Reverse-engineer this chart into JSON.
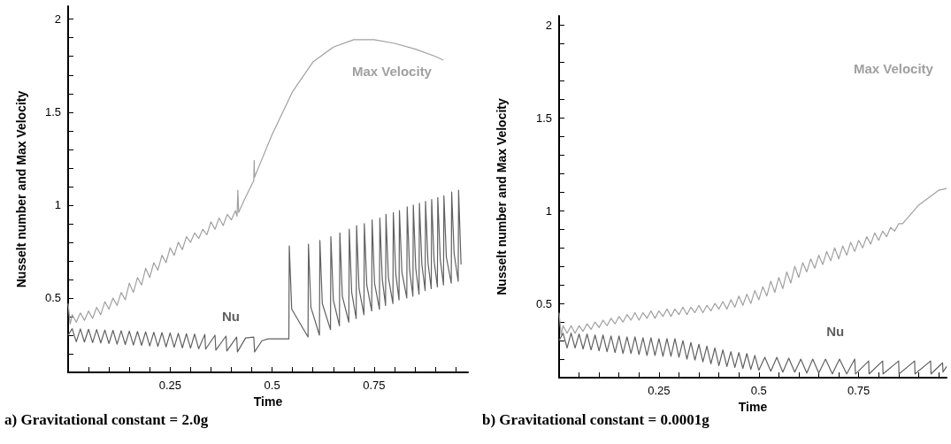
{
  "chart_data": [
    {
      "type": "line",
      "title": "a) Gravitational constant = 2.0g",
      "xlabel": "Time",
      "ylabel": "Nusselt number and Max Velocity",
      "xlim": [
        0,
        0.98
      ],
      "ylim": [
        0.1,
        2.07
      ],
      "xticks": [
        {
          "value": 0.05,
          "label": null
        },
        {
          "value": 0.1,
          "label": null
        },
        {
          "value": 0.15,
          "label": null
        },
        {
          "value": 0.2,
          "label": null
        },
        0.25,
        {
          "value": 0.3,
          "label": null
        },
        {
          "value": 0.35,
          "label": null
        },
        {
          "value": 0.4,
          "label": null
        },
        {
          "value": 0.45,
          "label": null
        },
        0.5,
        {
          "value": 0.55,
          "label": null
        },
        {
          "value": 0.6,
          "label": null
        },
        {
          "value": 0.65,
          "label": null
        },
        {
          "value": 0.7,
          "label": null
        },
        0.75,
        {
          "value": 0.8,
          "label": null
        },
        {
          "value": 0.85,
          "label": null
        },
        {
          "value": 0.9,
          "label": null
        },
        {
          "value": 0.95,
          "label": null
        }
      ],
      "yticks": [
        {
          "value": 0.2,
          "label": null
        },
        {
          "value": 0.3,
          "label": null
        },
        {
          "value": 0.4,
          "label": null
        },
        0.5,
        {
          "value": 0.6,
          "label": null
        },
        {
          "value": 0.7,
          "label": null
        },
        {
          "value": 0.8,
          "label": null
        },
        {
          "value": 0.9,
          "label": null
        },
        1,
        {
          "value": 1.1,
          "label": null
        },
        {
          "value": 1.2,
          "label": null
        },
        {
          "value": 1.3,
          "label": null
        },
        {
          "value": 1.4,
          "label": null
        },
        1.5,
        {
          "value": 1.6,
          "label": null
        },
        {
          "value": 1.7,
          "label": null
        },
        {
          "value": 1.8,
          "label": null
        },
        {
          "value": 1.9,
          "label": null
        },
        2
      ],
      "series": [
        {
          "name": "Max Velocity",
          "color": "#a0a0a0",
          "x": [
            0,
            0.005,
            0.01,
            0.02,
            0.03,
            0.04,
            0.05,
            0.06,
            0.07,
            0.08,
            0.09,
            0.1,
            0.11,
            0.12,
            0.13,
            0.14,
            0.15,
            0.16,
            0.17,
            0.18,
            0.19,
            0.2,
            0.21,
            0.22,
            0.23,
            0.24,
            0.25,
            0.26,
            0.27,
            0.28,
            0.29,
            0.3,
            0.31,
            0.32,
            0.33,
            0.34,
            0.35,
            0.36,
            0.37,
            0.38,
            0.39,
            0.4,
            0.41,
            0.414,
            0.416,
            0.418,
            0.43,
            0.45,
            0.455,
            0.456,
            0.457,
            0.47,
            0.5,
            0.55,
            0.6,
            0.65,
            0.7,
            0.75,
            0.8,
            0.85,
            0.9,
            0.92
          ],
          "values": [
            0.47,
            0.36,
            0.41,
            0.37,
            0.42,
            0.38,
            0.43,
            0.39,
            0.45,
            0.41,
            0.48,
            0.44,
            0.5,
            0.46,
            0.53,
            0.49,
            0.58,
            0.53,
            0.61,
            0.57,
            0.66,
            0.61,
            0.69,
            0.65,
            0.73,
            0.69,
            0.77,
            0.73,
            0.8,
            0.76,
            0.83,
            0.8,
            0.85,
            0.82,
            0.87,
            0.84,
            0.91,
            0.87,
            0.93,
            0.89,
            0.95,
            0.92,
            0.97,
            0.94,
            1.08,
            0.96,
            1.02,
            1.11,
            1.13,
            1.24,
            1.15,
            1.22,
            1.38,
            1.61,
            1.77,
            1.85,
            1.89,
            1.89,
            1.87,
            1.84,
            1.8,
            1.78
          ]
        },
        {
          "name": "Nu",
          "color": "#606060",
          "x": [
            0,
            0.01,
            0.02,
            0.03,
            0.04,
            0.05,
            0.06,
            0.07,
            0.08,
            0.09,
            0.1,
            0.11,
            0.12,
            0.13,
            0.14,
            0.15,
            0.16,
            0.17,
            0.18,
            0.19,
            0.2,
            0.21,
            0.22,
            0.23,
            0.24,
            0.25,
            0.26,
            0.27,
            0.28,
            0.29,
            0.3,
            0.31,
            0.32,
            0.335,
            0.337,
            0.36,
            0.362,
            0.387,
            0.389,
            0.413,
            0.415,
            0.435,
            0.455,
            0.457,
            0.475,
            0.49,
            0.541,
            0.542,
            0.548,
            0.588,
            0.589,
            0.595,
            0.616,
            0.617,
            0.623,
            0.643,
            0.644,
            0.65,
            0.665,
            0.666,
            0.672,
            0.688,
            0.689,
            0.695,
            0.706,
            0.707,
            0.713,
            0.725,
            0.726,
            0.732,
            0.744,
            0.745,
            0.751,
            0.763,
            0.764,
            0.77,
            0.778,
            0.779,
            0.785,
            0.796,
            0.797,
            0.803,
            0.811,
            0.812,
            0.818,
            0.83,
            0.831,
            0.837,
            0.845,
            0.846,
            0.852,
            0.86,
            0.861,
            0.867,
            0.875,
            0.876,
            0.882,
            0.89,
            0.891,
            0.897,
            0.905,
            0.906,
            0.912,
            0.92,
            0.921,
            0.927,
            0.939,
            0.94,
            0.946,
            0.956,
            0.957,
            0.963
          ],
          "values": [
            0.3,
            0.335,
            0.265,
            0.334,
            0.263,
            0.332,
            0.26,
            0.33,
            0.258,
            0.328,
            0.255,
            0.326,
            0.252,
            0.324,
            0.25,
            0.322,
            0.247,
            0.32,
            0.245,
            0.318,
            0.242,
            0.316,
            0.24,
            0.314,
            0.237,
            0.312,
            0.235,
            0.31,
            0.232,
            0.308,
            0.23,
            0.306,
            0.227,
            0.304,
            0.225,
            0.3,
            0.22,
            0.295,
            0.215,
            0.29,
            0.21,
            0.285,
            0.29,
            0.21,
            0.27,
            0.28,
            0.28,
            0.78,
            0.44,
            0.29,
            0.79,
            0.45,
            0.3,
            0.81,
            0.47,
            0.33,
            0.83,
            0.49,
            0.35,
            0.85,
            0.51,
            0.37,
            0.87,
            0.53,
            0.39,
            0.89,
            0.55,
            0.41,
            0.9,
            0.57,
            0.43,
            0.92,
            0.58,
            0.44,
            0.93,
            0.6,
            0.46,
            0.95,
            0.61,
            0.47,
            0.96,
            0.63,
            0.49,
            0.97,
            0.64,
            0.5,
            0.99,
            0.65,
            0.51,
            1,
            0.66,
            0.52,
            1.01,
            0.68,
            0.54,
            1.02,
            0.69,
            0.55,
            1.03,
            0.7,
            0.56,
            1.04,
            0.71,
            0.57,
            1.05,
            0.72,
            0.58,
            1.07,
            0.74,
            0.59,
            1.08,
            0.68
          ]
        }
      ]
    },
    {
      "type": "line",
      "title": "b) Gravitational constant = 0.0001g",
      "xlabel": "Time",
      "ylabel": "Nusselt number and Max Velocity",
      "xlim": [
        0,
        0.97
      ],
      "ylim": [
        0.1,
        2.05
      ],
      "xticks": [
        {
          "value": 0.05,
          "label": null
        },
        {
          "value": 0.1,
          "label": null
        },
        {
          "value": 0.15,
          "label": null
        },
        {
          "value": 0.2,
          "label": null
        },
        0.25,
        {
          "value": 0.3,
          "label": null
        },
        {
          "value": 0.35,
          "label": null
        },
        {
          "value": 0.4,
          "label": null
        },
        {
          "value": 0.45,
          "label": null
        },
        0.5,
        {
          "value": 0.55,
          "label": null
        },
        {
          "value": 0.6,
          "label": null
        },
        {
          "value": 0.65,
          "label": null
        },
        {
          "value": 0.7,
          "label": null
        },
        0.75,
        {
          "value": 0.8,
          "label": null
        },
        {
          "value": 0.85,
          "label": null
        },
        {
          "value": 0.9,
          "label": null
        },
        {
          "value": 0.95,
          "label": null
        }
      ],
      "yticks": [
        {
          "value": 0.2,
          "label": null
        },
        {
          "value": 0.3,
          "label": null
        },
        {
          "value": 0.4,
          "label": null
        },
        0.5,
        {
          "value": 0.6,
          "label": null
        },
        {
          "value": 0.7,
          "label": null
        },
        {
          "value": 0.8,
          "label": null
        },
        {
          "value": 0.9,
          "label": null
        },
        1,
        {
          "value": 1.1,
          "label": null
        },
        {
          "value": 1.2,
          "label": null
        },
        {
          "value": 1.3,
          "label": null
        },
        {
          "value": 1.4,
          "label": null
        },
        1.5,
        {
          "value": 1.6,
          "label": null
        },
        {
          "value": 1.7,
          "label": null
        },
        {
          "value": 1.8,
          "label": null
        },
        {
          "value": 1.9,
          "label": null
        },
        2
      ],
      "series": [
        {
          "name": "Max Velocity",
          "color": "#a0a0a0",
          "x": [
            0,
            0.005,
            0.01,
            0.02,
            0.03,
            0.04,
            0.05,
            0.06,
            0.07,
            0.08,
            0.09,
            0.1,
            0.11,
            0.12,
            0.13,
            0.14,
            0.15,
            0.16,
            0.17,
            0.18,
            0.19,
            0.2,
            0.21,
            0.22,
            0.23,
            0.24,
            0.25,
            0.26,
            0.27,
            0.28,
            0.29,
            0.3,
            0.31,
            0.32,
            0.33,
            0.34,
            0.35,
            0.36,
            0.37,
            0.38,
            0.39,
            0.4,
            0.41,
            0.42,
            0.43,
            0.44,
            0.45,
            0.46,
            0.47,
            0.48,
            0.49,
            0.5,
            0.51,
            0.52,
            0.53,
            0.54,
            0.55,
            0.56,
            0.57,
            0.58,
            0.59,
            0.6,
            0.61,
            0.62,
            0.63,
            0.64,
            0.65,
            0.66,
            0.67,
            0.68,
            0.69,
            0.7,
            0.71,
            0.72,
            0.73,
            0.74,
            0.75,
            0.76,
            0.77,
            0.78,
            0.79,
            0.8,
            0.81,
            0.82,
            0.83,
            0.84,
            0.85,
            0.86,
            0.9,
            0.95,
            0.97
          ],
          "values": [
            0.45,
            0.33,
            0.38,
            0.34,
            0.38,
            0.34,
            0.38,
            0.35,
            0.39,
            0.36,
            0.4,
            0.37,
            0.41,
            0.38,
            0.42,
            0.39,
            0.43,
            0.4,
            0.44,
            0.41,
            0.45,
            0.41,
            0.45,
            0.42,
            0.46,
            0.42,
            0.46,
            0.43,
            0.47,
            0.43,
            0.47,
            0.44,
            0.48,
            0.44,
            0.48,
            0.45,
            0.49,
            0.45,
            0.49,
            0.46,
            0.5,
            0.47,
            0.51,
            0.47,
            0.52,
            0.48,
            0.54,
            0.49,
            0.55,
            0.5,
            0.57,
            0.52,
            0.59,
            0.54,
            0.62,
            0.56,
            0.64,
            0.58,
            0.67,
            0.61,
            0.7,
            0.64,
            0.72,
            0.67,
            0.74,
            0.69,
            0.76,
            0.71,
            0.78,
            0.73,
            0.8,
            0.74,
            0.81,
            0.76,
            0.83,
            0.78,
            0.84,
            0.8,
            0.86,
            0.82,
            0.88,
            0.84,
            0.89,
            0.86,
            0.91,
            0.89,
            0.93,
            0.93,
            1.03,
            1.11,
            1.12
          ]
        },
        {
          "name": "Nu",
          "color": "#606060",
          "x": [
            0,
            0.01,
            0.02,
            0.03,
            0.04,
            0.05,
            0.06,
            0.07,
            0.08,
            0.09,
            0.1,
            0.11,
            0.12,
            0.13,
            0.14,
            0.15,
            0.16,
            0.17,
            0.18,
            0.19,
            0.2,
            0.21,
            0.22,
            0.23,
            0.24,
            0.25,
            0.26,
            0.27,
            0.28,
            0.29,
            0.3,
            0.31,
            0.32,
            0.33,
            0.34,
            0.35,
            0.36,
            0.37,
            0.38,
            0.39,
            0.4,
            0.41,
            0.42,
            0.43,
            0.44,
            0.45,
            0.46,
            0.47,
            0.48,
            0.49,
            0.5,
            0.515,
            0.53,
            0.545,
            0.56,
            0.575,
            0.59,
            0.605,
            0.62,
            0.635,
            0.65,
            0.667,
            0.684,
            0.702,
            0.72,
            0.74,
            0.742,
            0.775,
            0.776,
            0.81,
            0.811,
            0.85,
            0.851,
            0.89,
            0.891,
            0.93,
            0.931,
            0.96,
            0.961,
            0.97
          ],
          "values": [
            0.3,
            0.34,
            0.26,
            0.34,
            0.26,
            0.335,
            0.255,
            0.335,
            0.25,
            0.33,
            0.245,
            0.33,
            0.24,
            0.325,
            0.235,
            0.325,
            0.23,
            0.32,
            0.23,
            0.32,
            0.225,
            0.315,
            0.22,
            0.315,
            0.22,
            0.31,
            0.215,
            0.31,
            0.215,
            0.31,
            0.21,
            0.3,
            0.2,
            0.29,
            0.195,
            0.28,
            0.185,
            0.27,
            0.175,
            0.26,
            0.165,
            0.25,
            0.16,
            0.24,
            0.155,
            0.235,
            0.15,
            0.23,
            0.145,
            0.22,
            0.14,
            0.21,
            0.135,
            0.21,
            0.13,
            0.205,
            0.13,
            0.2,
            0.125,
            0.2,
            0.125,
            0.2,
            0.12,
            0.2,
            0.12,
            0.2,
            0.12,
            0.19,
            0.12,
            0.19,
            0.12,
            0.19,
            0.12,
            0.19,
            0.12,
            0.19,
            0.12,
            0.18,
            0.13,
            0.16
          ]
        }
      ]
    }
  ]
}
